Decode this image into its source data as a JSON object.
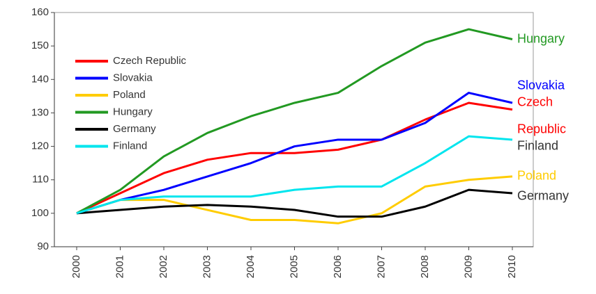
{
  "chart_data": {
    "type": "line",
    "categories": [
      "2000",
      "2001",
      "2002",
      "2003",
      "2004",
      "2005",
      "2006",
      "2007",
      "2008",
      "2009",
      "2010"
    ],
    "series": [
      {
        "name": "Czech Republic",
        "color": "#ff0000",
        "values": [
          100,
          106,
          112,
          116,
          118,
          118,
          119,
          122,
          128,
          133,
          131
        ]
      },
      {
        "name": "Slovakia",
        "color": "#0000ff",
        "values": [
          100,
          104,
          107,
          111,
          115,
          120,
          122,
          122,
          127,
          136,
          133
        ]
      },
      {
        "name": "Poland",
        "color": "#ffcc00",
        "values": [
          100,
          104,
          104,
          101,
          98,
          98,
          97,
          100,
          108,
          110,
          111
        ]
      },
      {
        "name": "Hungary",
        "color": "#229922",
        "values": [
          100,
          107,
          117,
          124,
          129,
          133,
          136,
          144,
          151,
          155,
          152
        ]
      },
      {
        "name": "Germany",
        "color": "#000000",
        "values": [
          100,
          101,
          102,
          102.5,
          102,
          101,
          99,
          99,
          102,
          107,
          106
        ]
      },
      {
        "name": "Finland",
        "color": "#00e5ee",
        "values": [
          100,
          104,
          105,
          105,
          105,
          107,
          108,
          108,
          115,
          123,
          122
        ]
      }
    ],
    "annotations": [
      {
        "text": "Hungary",
        "color": "#229922",
        "y": 152
      },
      {
        "text": "Slovakia",
        "color": "#0000ff",
        "y": 138
      },
      {
        "text": "Czech",
        "color": "#ff0000",
        "y": 133
      },
      {
        "text": "Republic",
        "color": "#ff0000",
        "y": 125
      },
      {
        "text": "Finland",
        "color": "#333333",
        "y": 120
      },
      {
        "text": "Poland",
        "color": "#ffcc00",
        "y": 111
      },
      {
        "text": "Germany",
        "color": "#333333",
        "y": 105
      }
    ],
    "ylim": [
      90,
      160
    ],
    "yticks": [
      90,
      100,
      110,
      120,
      130,
      140,
      150,
      160
    ],
    "legend": "upper left"
  }
}
